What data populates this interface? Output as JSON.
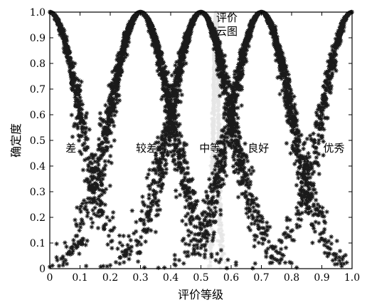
{
  "chart_data": {
    "type": "scatter",
    "title": "",
    "xlabel": "评价等级",
    "ylabel": "确定度",
    "xlim": [
      0,
      1
    ],
    "ylim": [
      0,
      1
    ],
    "xticks": [
      "0",
      "0.1",
      "0.2",
      "0.3",
      "0.4",
      "0.5",
      "0.6",
      "0.7",
      "0.8",
      "0.9",
      "1.0"
    ],
    "yticks": [
      "0",
      "0.1",
      "0.2",
      "0.3",
      "0.4",
      "0.5",
      "0.6",
      "0.7",
      "0.8",
      "0.9",
      "1.0"
    ],
    "grid": false,
    "marker": "star",
    "marker_color": "#1a1a1a",
    "highlight_color": "#e6e6e6",
    "clouds": [
      {
        "label": "差",
        "ex": 0.0,
        "en": 0.1,
        "he": 0.01
      },
      {
        "label": "较差",
        "ex": 0.3,
        "en": 0.1,
        "he": 0.01
      },
      {
        "label": "中等",
        "ex": 0.5,
        "en": 0.1,
        "he": 0.01
      },
      {
        "label": "良好",
        "ex": 0.7,
        "en": 0.1,
        "he": 0.01
      },
      {
        "label": "优秀",
        "ex": 1.0,
        "en": 0.1,
        "he": 0.01
      }
    ],
    "evaluation_cloud": {
      "label": "评价云图",
      "label_lines": [
        "评价",
        "云图"
      ],
      "ex": 0.55,
      "en": 0.008,
      "he": 0.002
    },
    "category_label_y": 0.47
  }
}
